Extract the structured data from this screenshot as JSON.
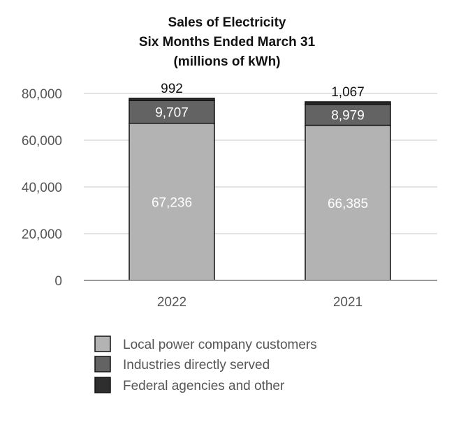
{
  "chart_data": {
    "type": "bar",
    "stacked": true,
    "title": [
      "Sales of Electricity",
      "Six Months Ended March 31",
      "(millions of kWh)"
    ],
    "xlabel": "",
    "ylabel": "",
    "categories": [
      "2022",
      "2021"
    ],
    "ylim": [
      0,
      80000
    ],
    "yticks": [
      0,
      20000,
      40000,
      60000,
      80000
    ],
    "ytick_labels": [
      "0",
      "20,000",
      "40,000",
      "60,000",
      "80,000"
    ],
    "grid": true,
    "series": [
      {
        "name": "Local power company customers",
        "values": [
          67236,
          66385
        ],
        "labels": [
          "67,236",
          "66,385"
        ],
        "color": "#b3b3b3",
        "label_color": "#ffffff"
      },
      {
        "name": "Industries directly served",
        "values": [
          9707,
          8979
        ],
        "labels": [
          "9,707",
          "8,979"
        ],
        "color": "#636363",
        "label_color": "#ffffff"
      },
      {
        "name": "Federal agencies and other",
        "values": [
          992,
          1067
        ],
        "labels": [
          "992",
          "1,067"
        ],
        "color": "#2e2e2e",
        "label_color": "#111111"
      }
    ],
    "legend_position": "bottom"
  }
}
